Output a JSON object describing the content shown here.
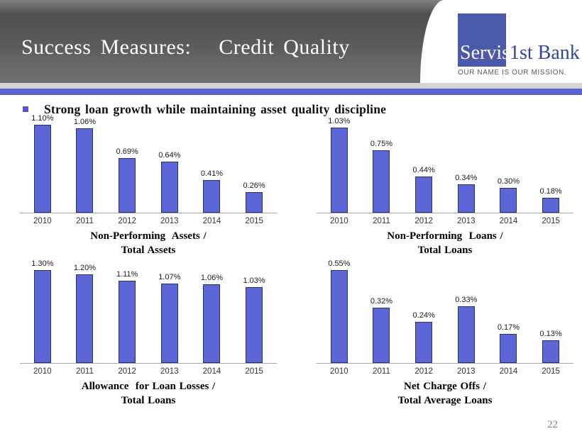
{
  "slide": {
    "title": "Success Measures:   Credit Quality",
    "bullet_text": "Strong loan growth while maintaining asset quality discipline",
    "page_number": "22"
  },
  "logo": {
    "name_part1": "Servis",
    "name_part2": "1st Bank",
    "tagline": "OUR NAME IS OUR MISSION.",
    "square_color": "#4a59a9",
    "name2_color": "#31459e"
  },
  "colors": {
    "bar_fill": "#5c66d6",
    "bar_border": "#283168",
    "divider_blue": "#5a64ce",
    "divider_gray": "#d4d4d7",
    "bullet_square": "#5558c8",
    "axis_line": "#a6a6a6"
  },
  "chart_data": [
    {
      "type": "bar",
      "title_line1": "Non-Performing  Assets /",
      "title_line2": "Total Assets",
      "categories": [
        "2010",
        "2011",
        "2012",
        "2013",
        "2014",
        "2015"
      ],
      "values": [
        1.1,
        1.06,
        0.69,
        0.64,
        0.41,
        0.26
      ],
      "labels": [
        "1.10%",
        "1.06%",
        "0.69%",
        "0.64%",
        "0.41%",
        "0.26%"
      ],
      "ylim": [
        0,
        1.3
      ],
      "grid": false,
      "legend": "none"
    },
    {
      "type": "bar",
      "title_line1": "Non-Performing  Loans /",
      "title_line2": "Total Loans",
      "categories": [
        "2010",
        "2011",
        "2012",
        "2013",
        "2014",
        "2015"
      ],
      "values": [
        1.03,
        0.75,
        0.44,
        0.34,
        0.3,
        0.18
      ],
      "labels": [
        "1.03%",
        "0.75%",
        "0.44%",
        "0.34%",
        "0.30%",
        "0.18%"
      ],
      "ylim": [
        0,
        1.25
      ],
      "grid": false,
      "legend": "none"
    },
    {
      "type": "bar",
      "title_line1": "Allowance  for Loan Losses /",
      "title_line2": "Total Loans",
      "categories": [
        "2010",
        "2011",
        "2012",
        "2013",
        "2014",
        "2015"
      ],
      "values": [
        1.3,
        1.2,
        1.11,
        1.07,
        1.06,
        1.03
      ],
      "labels": [
        "1.30%",
        "1.20%",
        "1.11%",
        "1.07%",
        "1.06%",
        "1.03%"
      ],
      "ylim": [
        0,
        1.4
      ],
      "grid": false,
      "legend": "none"
    },
    {
      "type": "bar",
      "title_line1": "Net Charge Offs /",
      "title_line2": "Total Average Loans",
      "categories": [
        "2010",
        "2011",
        "2012",
        "2013",
        "2014",
        "2015"
      ],
      "values": [
        0.55,
        0.32,
        0.24,
        0.33,
        0.17,
        0.13
      ],
      "labels": [
        "0.55%",
        "0.32%",
        "0.24%",
        "0.33%",
        "0.17%",
        "0.13%"
      ],
      "ylim": [
        0,
        0.6
      ],
      "grid": false,
      "legend": "none"
    }
  ]
}
